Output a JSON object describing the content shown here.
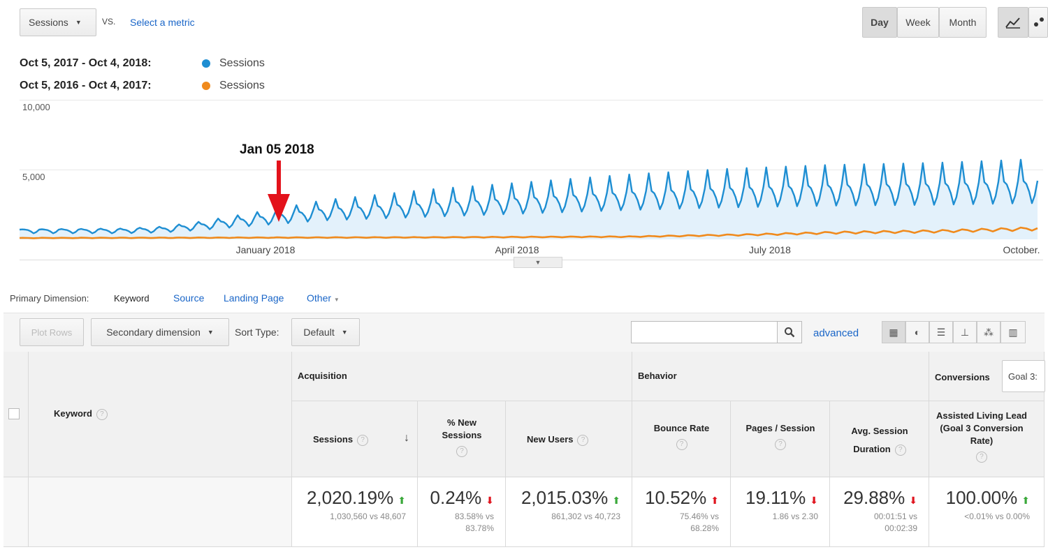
{
  "toolbar": {
    "metric_select": "Sessions",
    "vs_label": "VS.",
    "select_metric": "Select a metric",
    "day": "Day",
    "week": "Week",
    "month": "Month"
  },
  "legend": [
    {
      "range": "Oct 5, 2017 - Oct 4, 2018:",
      "series": "Sessions",
      "color": "#1e8ed2"
    },
    {
      "range": "Oct 5, 2016 - Oct 4, 2017:",
      "series": "Sessions",
      "color": "#f08a1c"
    }
  ],
  "annotation": "Jan 05 2018",
  "chart_data": {
    "type": "line",
    "y_ticks": [
      "10,000",
      "5,000"
    ],
    "x_ticks": [
      "January 2018",
      "April 2018",
      "July 2018",
      "October."
    ],
    "ylim": [
      0,
      10000
    ],
    "grid": true,
    "series": [
      {
        "name": "Sessions",
        "color": "#1e8ed2",
        "area": true,
        "trend": [
          [
            0,
            700
          ],
          [
            10,
            700
          ],
          [
            14,
            800
          ],
          [
            18,
            1100
          ],
          [
            20,
            1300
          ],
          [
            30,
            2200
          ],
          [
            40,
            2600
          ],
          [
            50,
            3000
          ],
          [
            60,
            3400
          ],
          [
            70,
            3700
          ],
          [
            80,
            3900
          ],
          [
            90,
            4000
          ],
          [
            100,
            4200
          ]
        ],
        "weekly_peak_extra": 0.35
      },
      {
        "name": "Sessions",
        "color": "#f08a1c",
        "area": false,
        "trend": [
          [
            0,
            100
          ],
          [
            40,
            150
          ],
          [
            60,
            200
          ],
          [
            72,
            350
          ],
          [
            80,
            500
          ],
          [
            90,
            600
          ],
          [
            100,
            800
          ]
        ]
      }
    ]
  },
  "dimension": {
    "label": "Primary Dimension:",
    "active": "Keyword",
    "options": [
      "Source",
      "Landing Page",
      "Other"
    ]
  },
  "controls": {
    "plot_rows": "Plot Rows",
    "secondary": "Secondary dimension",
    "sort_label": "Sort Type:",
    "sort_value": "Default",
    "search_value": "",
    "advanced": "advanced"
  },
  "table": {
    "keyword_header": "Keyword",
    "groups": {
      "acquisition": "Acquisition",
      "behavior": "Behavior",
      "conversions": "Conversions",
      "goal_select": "Goal 3:"
    },
    "columns": {
      "sessions": "Sessions",
      "new_sessions": "% New Sessions",
      "new_users": "New Users",
      "bounce_rate": "Bounce Rate",
      "pages_session": "Pages / Session",
      "avg_duration": "Avg. Session Duration",
      "assisted": "Assisted Living Lead (Goal 3 Conversion Rate)"
    },
    "row": {
      "sessions": {
        "value": "2,020.19%",
        "detail": "1,030,560 vs 48,607",
        "dir": "up"
      },
      "new_sessions": {
        "value": "0.24%",
        "detail": "83.58% vs 83.78%",
        "dir": "down"
      },
      "new_users": {
        "value": "2,015.03%",
        "detail": "861,302 vs 40,723",
        "dir": "up"
      },
      "bounce_rate": {
        "value": "10.52%",
        "detail": "75.46% vs 68.28%",
        "dir": "up-red"
      },
      "pages_session": {
        "value": "19.11%",
        "detail": "1.86 vs 2.30",
        "dir": "down"
      },
      "avg_duration": {
        "value": "29.88%",
        "detail": "00:01:51 vs 00:02:39",
        "dir": "down"
      },
      "assisted": {
        "value": "100.00%",
        "detail": "<0.01% vs 0.00%",
        "dir": "up"
      }
    }
  }
}
